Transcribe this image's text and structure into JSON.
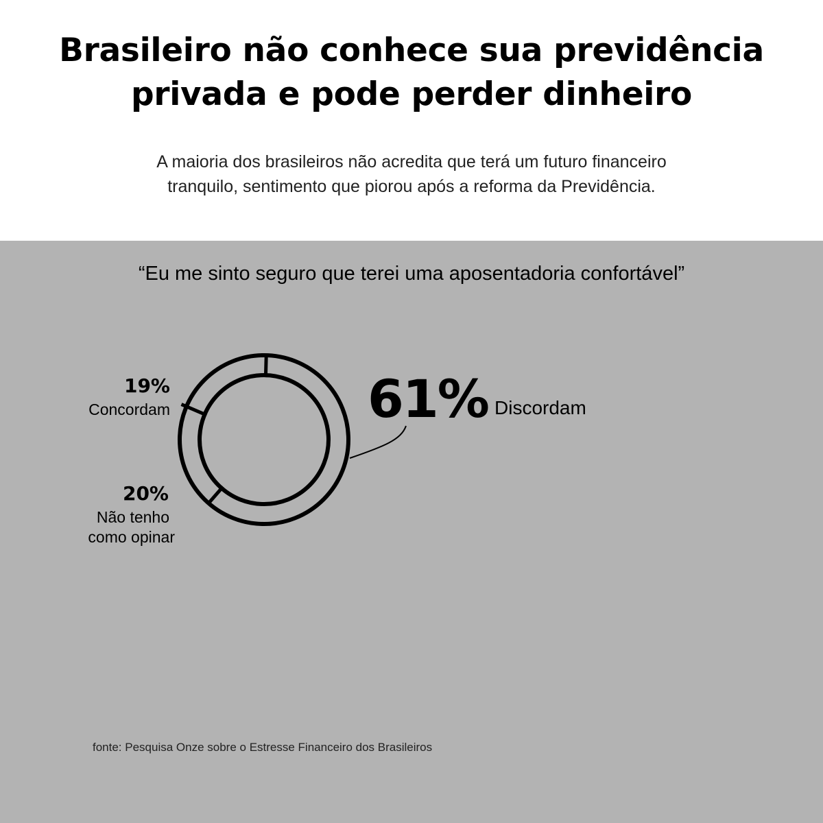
{
  "header": {
    "title_line1": "Brasileiro não conhece sua previdência",
    "title_line2": "privada e pode perder dinheiro",
    "subtitle_line1": "A maioria dos brasileiros não acredita que terá um futuro financeiro",
    "subtitle_line2": "tranquilo, sentimento que piorou após a reforma da Previdência."
  },
  "chart_data": {
    "type": "pie",
    "title": "“Eu me sinto seguro que terei uma aposentadoria confortável”",
    "slices": [
      {
        "label_lines": [
          "Concordam"
        ],
        "value": 19,
        "value_label": "19%"
      },
      {
        "label_lines": [
          "Não tenho",
          "como opinar"
        ],
        "value": 20,
        "value_label": "20%"
      },
      {
        "label_lines": [
          "Discordam"
        ],
        "value": 61,
        "value_label": "61%"
      }
    ],
    "style": "donut-outline"
  },
  "source": "fonte: Pesquisa Onze sobre o Estresse Financeiro dos Brasileiros",
  "colors": {
    "panel": "#b3b3b3",
    "ink": "#000000",
    "background": "#ffffff"
  }
}
